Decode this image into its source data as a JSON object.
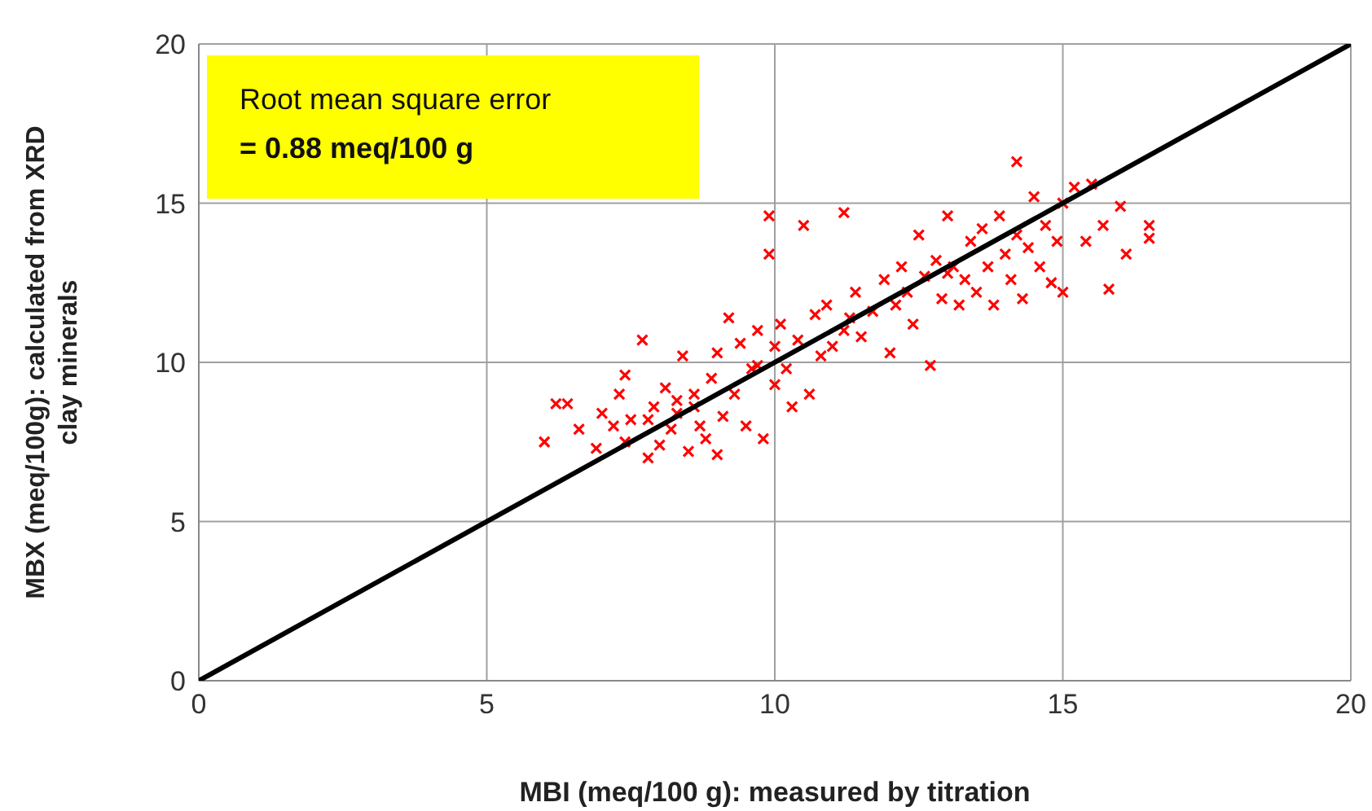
{
  "chart_data": {
    "type": "scatter",
    "xlabel": "MBI (meq/100 g): measured by titration",
    "ylabel": "MBX (meq/100g): calculated from XRD\nclay minerals",
    "annotations": [
      "Root mean square error\n= 0.88 meq/100 g"
    ],
    "xlim": [
      0,
      20
    ],
    "ylim": [
      0,
      20
    ],
    "xticks": [
      0,
      5,
      10,
      15,
      20
    ],
    "yticks": [
      0,
      5,
      10,
      15,
      20
    ],
    "grid": true,
    "marker": "cross",
    "series": [
      {
        "color": "#ff0000",
        "x": [
          6.0,
          6.2,
          6.4,
          6.6,
          6.9,
          7.0,
          7.2,
          7.3,
          7.4,
          7.4,
          7.5,
          7.7,
          7.8,
          7.9,
          8.0,
          8.1,
          8.2,
          8.3,
          8.4,
          8.5,
          8.6,
          8.7,
          8.8,
          8.9,
          9.0,
          9.0,
          9.1,
          9.2,
          9.3,
          9.4,
          9.5,
          9.6,
          9.7,
          9.8,
          9.9,
          9.9,
          10.0,
          10.0,
          10.1,
          10.2,
          10.3,
          10.4,
          10.5,
          10.6,
          10.7,
          10.8,
          10.9,
          11.0,
          11.2,
          11.2,
          11.4,
          11.5,
          11.7,
          11.9,
          12.0,
          12.1,
          12.2,
          12.3,
          12.4,
          12.5,
          12.6,
          12.7,
          12.8,
          12.9,
          13.0,
          13.1,
          13.2,
          13.3,
          13.4,
          13.5,
          13.6,
          13.7,
          13.8,
          13.9,
          14.0,
          14.1,
          14.2,
          14.2,
          14.3,
          14.4,
          14.5,
          14.6,
          14.7,
          14.8,
          14.9,
          15.0,
          15.0,
          15.2,
          15.4,
          15.5,
          15.8,
          15.7,
          16.0,
          16.1,
          16.5,
          16.5,
          8.3,
          9.7,
          11.3,
          13.0,
          7.8,
          8.6
        ],
        "values": [
          7.5,
          8.7,
          8.7,
          7.9,
          7.3,
          8.4,
          8.0,
          9.0,
          9.6,
          7.5,
          8.2,
          10.7,
          7.0,
          8.6,
          7.4,
          9.2,
          7.9,
          8.4,
          10.2,
          7.2,
          9.0,
          8.0,
          7.6,
          9.5,
          7.1,
          10.3,
          8.3,
          11.4,
          9.0,
          10.6,
          8.0,
          9.8,
          11.0,
          7.6,
          14.6,
          13.4,
          9.3,
          10.5,
          11.2,
          9.8,
          8.6,
          10.7,
          14.3,
          9.0,
          11.5,
          10.2,
          11.8,
          10.5,
          14.7,
          11.0,
          12.2,
          10.8,
          11.6,
          12.6,
          10.3,
          11.8,
          13.0,
          12.2,
          11.2,
          14.0,
          12.7,
          9.9,
          13.2,
          12.0,
          14.6,
          13.0,
          11.8,
          12.6,
          13.8,
          12.2,
          14.2,
          13.0,
          11.8,
          14.6,
          13.4,
          12.6,
          16.3,
          14.0,
          12.0,
          13.6,
          15.2,
          13.0,
          14.3,
          12.5,
          13.8,
          15.0,
          12.2,
          15.5,
          13.8,
          15.6,
          12.3,
          14.3,
          14.9,
          13.4,
          14.3,
          13.9,
          8.8,
          9.9,
          11.4,
          12.8,
          8.2,
          8.6
        ]
      },
      {
        "type": "line",
        "color": "#000000",
        "marker": "none",
        "x": [
          0,
          20
        ],
        "values": [
          0,
          20
        ]
      }
    ]
  }
}
